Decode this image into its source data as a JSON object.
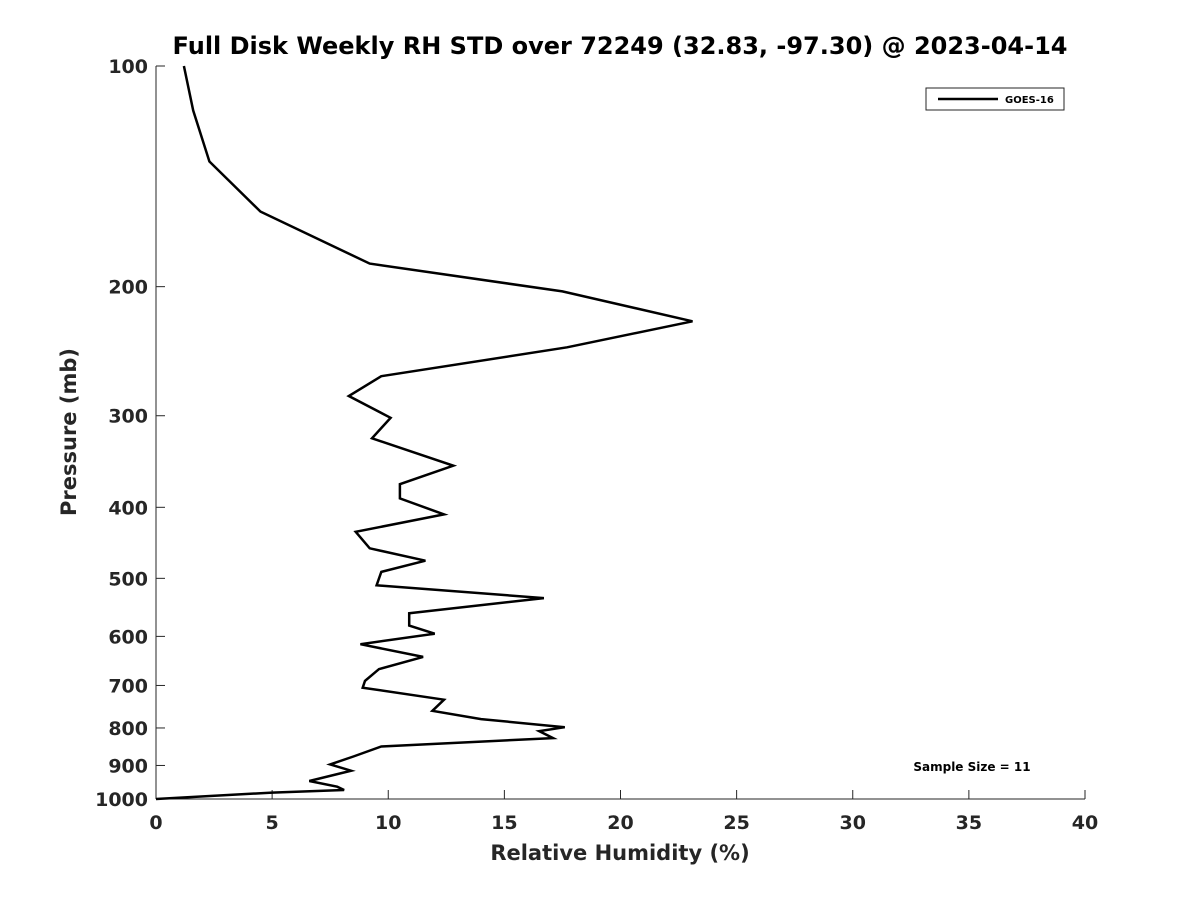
{
  "chart_data": {
    "type": "line",
    "title": "Full Disk Weekly RH STD over 72249 (32.83, -97.30) @ 2023-04-14",
    "xlabel": "Relative Humidity (%)",
    "ylabel": "Pressure (mb)",
    "xlim": [
      0,
      40
    ],
    "ylim": [
      100,
      1000
    ],
    "y_scale": "log",
    "y_reversed": true,
    "grid": false,
    "legend_position": "top-right",
    "x_ticks": [
      0,
      5,
      10,
      15,
      20,
      25,
      30,
      35,
      40
    ],
    "y_ticks": [
      100,
      200,
      300,
      400,
      500,
      600,
      700,
      800,
      900,
      1000
    ],
    "annotation": "Sample Size = 11",
    "series": [
      {
        "name": "GOES-16",
        "color": "#000000",
        "points": [
          [
            1.2,
            100
          ],
          [
            1.6,
            115
          ],
          [
            2.3,
            135
          ],
          [
            4.5,
            158
          ],
          [
            9.2,
            186
          ],
          [
            17.5,
            203
          ],
          [
            23.1,
            223
          ],
          [
            17.7,
            242
          ],
          [
            9.7,
            265
          ],
          [
            8.3,
            282
          ],
          [
            10.1,
            302
          ],
          [
            9.3,
            322
          ],
          [
            12.8,
            351
          ],
          [
            10.5,
            372
          ],
          [
            10.5,
            389
          ],
          [
            12.4,
            409
          ],
          [
            8.6,
            432
          ],
          [
            9.2,
            455
          ],
          [
            11.6,
            473
          ],
          [
            9.7,
            490
          ],
          [
            9.5,
            511
          ],
          [
            16.7,
            532
          ],
          [
            10.9,
            558
          ],
          [
            10.9,
            580
          ],
          [
            12.0,
            595
          ],
          [
            8.8,
            615
          ],
          [
            11.5,
            640
          ],
          [
            9.6,
            665
          ],
          [
            9.0,
            690
          ],
          [
            8.9,
            705
          ],
          [
            12.4,
            732
          ],
          [
            11.9,
            758
          ],
          [
            14.0,
            778
          ],
          [
            17.6,
            798
          ],
          [
            16.5,
            808
          ],
          [
            17.1,
            826
          ],
          [
            9.7,
            848
          ],
          [
            8.5,
            875
          ],
          [
            7.5,
            897
          ],
          [
            8.4,
            915
          ],
          [
            6.6,
            945
          ],
          [
            7.8,
            962
          ],
          [
            8.1,
            972
          ],
          [
            5.0,
            980
          ],
          [
            0.0,
            1000
          ]
        ]
      }
    ]
  }
}
